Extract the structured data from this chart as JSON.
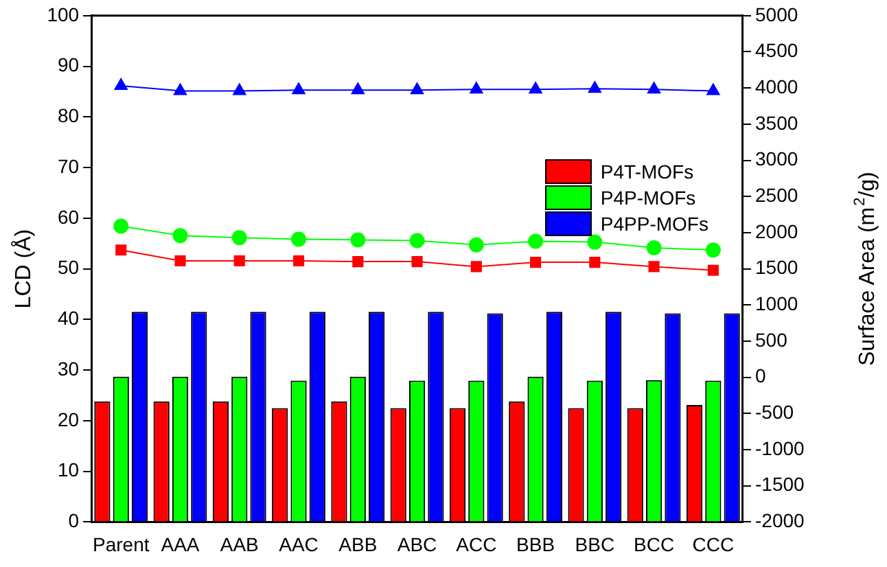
{
  "chart_data": {
    "type": "bar",
    "ylabel": "LCD (Å)",
    "y2label": "Surface Area (m$^{2}$/g)",
    "categories": [
      "Parent",
      "AAA",
      "AAB",
      "AAC",
      "ABB",
      "ABC",
      "ACC",
      "BBB",
      "BBC",
      "BCC",
      "CCC"
    ],
    "series": [
      {
        "name": "P4T-MOFs",
        "color": "#ff0000",
        "values": [
          23.8,
          23.8,
          23.8,
          22.5,
          23.8,
          22.5,
          22.5,
          23.8,
          22.5,
          22.5,
          23.1
        ]
      },
      {
        "name": "P4P-MOFs",
        "color": "#00ff00",
        "values": [
          28.7,
          28.7,
          28.7,
          27.9,
          28.7,
          27.9,
          27.9,
          28.7,
          27.9,
          28.0,
          27.9
        ]
      },
      {
        "name": "P4PP-MOFs",
        "color": "#0000ff",
        "values": [
          41.5,
          41.5,
          41.5,
          41.5,
          41.5,
          41.5,
          41.2,
          41.5,
          41.5,
          41.2,
          41.2
        ]
      },
      {
        "type": "line",
        "axis": "y2",
        "marker": "square",
        "color": "#ff0000",
        "values": [
          1760,
          1610,
          1610,
          1610,
          1600,
          1600,
          1530,
          1590,
          1590,
          1530,
          1480
        ]
      },
      {
        "type": "line",
        "axis": "y2",
        "marker": "circle",
        "color": "#00ff00",
        "values": [
          2090,
          1960,
          1930,
          1910,
          1900,
          1890,
          1830,
          1880,
          1870,
          1790,
          1760
        ]
      },
      {
        "type": "line",
        "axis": "y2",
        "marker": "triangle",
        "color": "#0000ff",
        "values": [
          4030,
          3960,
          3960,
          3970,
          3970,
          3970,
          3980,
          3980,
          3990,
          3980,
          3960
        ]
      }
    ],
    "ylim": [
      0,
      100
    ],
    "yticks": [
      0,
      10,
      20,
      30,
      40,
      50,
      60,
      70,
      80,
      90,
      100
    ],
    "y2lim": [
      -2000,
      5000
    ],
    "y2ticks": [
      -2000,
      -1500,
      -1000,
      -500,
      0,
      500,
      1000,
      1500,
      2000,
      2500,
      3000,
      3500,
      4000,
      4500,
      5000
    ],
    "grid": false,
    "legend": "right"
  }
}
